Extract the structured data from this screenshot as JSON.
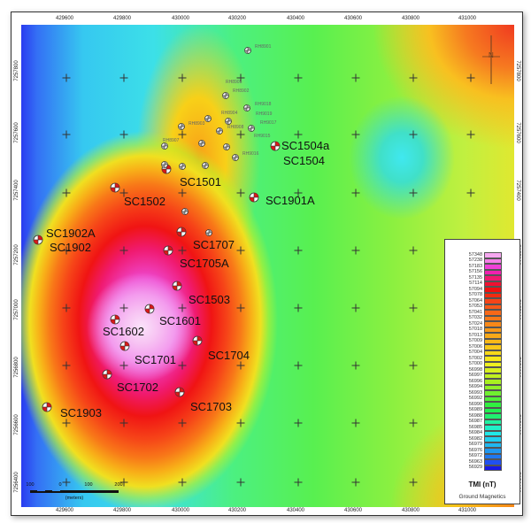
{
  "axes": {
    "x_ticks": [
      "429600",
      "429800",
      "430000",
      "430200",
      "430400",
      "430600",
      "430800",
      "431000"
    ],
    "y_ticks": [
      "7257800",
      "7257600",
      "7257400",
      "7257200",
      "7257000",
      "7256800",
      "7256600",
      "7256400"
    ]
  },
  "drillholes": {
    "sc": [
      {
        "label": "SC1504a"
      },
      {
        "label": "SC1504"
      },
      {
        "label": "SC1501"
      },
      {
        "label": "SC1502"
      },
      {
        "label": "SC1901A"
      },
      {
        "label": "SC1902A"
      },
      {
        "label": "SC1902"
      },
      {
        "label": "SC1707"
      },
      {
        "label": "SC1705A"
      },
      {
        "label": "SC1503"
      },
      {
        "label": "SC1601"
      },
      {
        "label": "SC1602"
      },
      {
        "label": "SC1701"
      },
      {
        "label": "SC1704"
      },
      {
        "label": "SC1702"
      },
      {
        "label": "SC1703"
      },
      {
        "label": "SC1903"
      }
    ],
    "rh": [
      {
        "label": "RH8901"
      },
      {
        "label": "RH8905"
      },
      {
        "label": "RH8902"
      },
      {
        "label": "RH9018"
      },
      {
        "label": "RH8904"
      },
      {
        "label": "RH9019"
      },
      {
        "label": "RH8903"
      },
      {
        "label": "RH8908"
      },
      {
        "label": "RH9017"
      },
      {
        "label": "RH9015"
      },
      {
        "label": "RH8907"
      },
      {
        "label": "RH9016"
      }
    ],
    "marker_colors": {
      "sc": "#d81818",
      "rh": "#9a9a9a"
    }
  },
  "legend": {
    "title": "TMI (nT)",
    "subtitle": "Ground Magnetics",
    "classes": [
      {
        "value": "57348",
        "color": "#f7a8f0"
      },
      {
        "value": "57238",
        "color": "#f67ee8"
      },
      {
        "value": "57183",
        "color": "#f040d8"
      },
      {
        "value": "57156",
        "color": "#f020b0"
      },
      {
        "value": "57135",
        "color": "#f01870"
      },
      {
        "value": "57114",
        "color": "#f01030"
      },
      {
        "value": "57094",
        "color": "#f01010"
      },
      {
        "value": "57078",
        "color": "#f42a10"
      },
      {
        "value": "57064",
        "color": "#f64418"
      },
      {
        "value": "57053",
        "color": "#f85818"
      },
      {
        "value": "57041",
        "color": "#f86818"
      },
      {
        "value": "57032",
        "color": "#f87818"
      },
      {
        "value": "57024",
        "color": "#f88818"
      },
      {
        "value": "57018",
        "color": "#f89818"
      },
      {
        "value": "57013",
        "color": "#f8a818"
      },
      {
        "value": "57009",
        "color": "#f8b818"
      },
      {
        "value": "57006",
        "color": "#f8c818"
      },
      {
        "value": "57004",
        "color": "#f8d818"
      },
      {
        "value": "57002",
        "color": "#f8e818"
      },
      {
        "value": "57000",
        "color": "#f0f020"
      },
      {
        "value": "56998",
        "color": "#d8f020"
      },
      {
        "value": "56997",
        "color": "#c0f020"
      },
      {
        "value": "56996",
        "color": "#a8f020"
      },
      {
        "value": "56994",
        "color": "#90f028"
      },
      {
        "value": "56993",
        "color": "#70f030"
      },
      {
        "value": "56992",
        "color": "#50f038"
      },
      {
        "value": "56990",
        "color": "#30f040"
      },
      {
        "value": "56989",
        "color": "#20f050"
      },
      {
        "value": "56988",
        "color": "#20f070"
      },
      {
        "value": "56987",
        "color": "#20f0a0"
      },
      {
        "value": "56985",
        "color": "#20f0c8"
      },
      {
        "value": "56984",
        "color": "#20e8e8"
      },
      {
        "value": "56982",
        "color": "#20d0f0"
      },
      {
        "value": "56979",
        "color": "#20b8f0"
      },
      {
        "value": "56976",
        "color": "#2098f0"
      },
      {
        "value": "56972",
        "color": "#2078f0"
      },
      {
        "value": "56963",
        "color": "#2050f0"
      },
      {
        "value": "56929",
        "color": "#1818e8"
      }
    ]
  },
  "scale_bar": {
    "labels": [
      "100",
      "0",
      "100",
      "200"
    ],
    "unit": "(meters)"
  },
  "north_arrow": {
    "icon": "north-arrow-icon",
    "label": "N"
  }
}
